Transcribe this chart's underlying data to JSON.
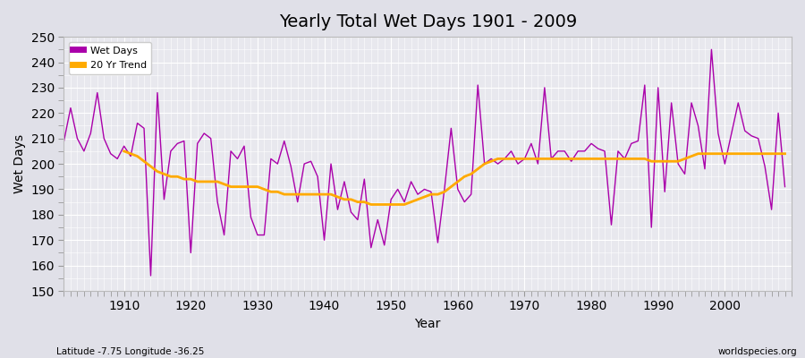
{
  "title": "Yearly Total Wet Days 1901 - 2009",
  "xlabel": "Year",
  "ylabel": "Wet Days",
  "footnote_left": "Latitude -7.75 Longitude -36.25",
  "footnote_right": "worldspecies.org",
  "ylim": [
    150,
    250
  ],
  "yticks": [
    150,
    160,
    170,
    180,
    190,
    200,
    210,
    220,
    230,
    240,
    250
  ],
  "xticks": [
    1910,
    1920,
    1930,
    1940,
    1950,
    1960,
    1970,
    1980,
    1990,
    2000
  ],
  "line_color": "#aa00aa",
  "trend_color": "#ffaa00",
  "bg_color": "#e8e8ee",
  "fig_color": "#e0e0e8",
  "legend_labels": [
    "Wet Days",
    "20 Yr Trend"
  ],
  "years": [
    1901,
    1902,
    1903,
    1904,
    1905,
    1906,
    1907,
    1908,
    1909,
    1910,
    1911,
    1912,
    1913,
    1914,
    1915,
    1916,
    1917,
    1918,
    1919,
    1920,
    1921,
    1922,
    1923,
    1924,
    1925,
    1926,
    1927,
    1928,
    1929,
    1930,
    1931,
    1932,
    1933,
    1934,
    1935,
    1936,
    1937,
    1938,
    1939,
    1940,
    1941,
    1942,
    1943,
    1944,
    1945,
    1946,
    1947,
    1948,
    1949,
    1950,
    1951,
    1952,
    1953,
    1954,
    1955,
    1956,
    1957,
    1958,
    1959,
    1960,
    1961,
    1962,
    1963,
    1964,
    1965,
    1966,
    1967,
    1968,
    1969,
    1970,
    1971,
    1972,
    1973,
    1974,
    1975,
    1976,
    1977,
    1978,
    1979,
    1980,
    1981,
    1982,
    1983,
    1984,
    1985,
    1986,
    1987,
    1988,
    1989,
    1990,
    1991,
    1992,
    1993,
    1994,
    1995,
    1996,
    1997,
    1998,
    1999,
    2000,
    2001,
    2002,
    2003,
    2004,
    2005,
    2006,
    2007,
    2008,
    2009
  ],
  "wet_days": [
    209,
    222,
    210,
    205,
    212,
    228,
    210,
    204,
    202,
    207,
    203,
    216,
    214,
    156,
    228,
    186,
    205,
    208,
    209,
    165,
    208,
    212,
    210,
    185,
    172,
    205,
    202,
    207,
    179,
    172,
    172,
    202,
    200,
    209,
    199,
    185,
    200,
    201,
    195,
    170,
    200,
    182,
    193,
    181,
    178,
    194,
    167,
    178,
    168,
    186,
    190,
    185,
    193,
    188,
    190,
    189,
    169,
    190,
    214,
    190,
    185,
    188,
    231,
    200,
    202,
    200,
    202,
    205,
    200,
    202,
    208,
    200,
    230,
    202,
    205,
    205,
    201,
    205,
    205,
    208,
    206,
    205,
    176,
    205,
    202,
    208,
    209,
    231,
    175,
    230,
    189,
    224,
    200,
    196,
    224,
    215,
    198,
    245,
    212,
    200,
    212,
    224,
    213,
    211,
    210,
    199,
    182,
    220,
    191
  ],
  "trend_years": [
    1910,
    1911,
    1912,
    1913,
    1914,
    1915,
    1916,
    1917,
    1918,
    1919,
    1920,
    1921,
    1922,
    1923,
    1924,
    1925,
    1926,
    1927,
    1928,
    1929,
    1930,
    1931,
    1932,
    1933,
    1934,
    1935,
    1936,
    1937,
    1938,
    1939,
    1940,
    1941,
    1942,
    1943,
    1944,
    1945,
    1946,
    1947,
    1948,
    1949,
    1950,
    1951,
    1952,
    1953,
    1954,
    1955,
    1956,
    1957,
    1958,
    1959,
    1960,
    1961,
    1962,
    1963,
    1964,
    1965,
    1966,
    1967,
    1968,
    1969,
    1970,
    1971,
    1972,
    1973,
    1974,
    1975,
    1976,
    1977,
    1978,
    1979,
    1980,
    1981,
    1982,
    1983,
    1984,
    1985,
    1986,
    1987,
    1988,
    1989,
    1990,
    1991,
    1992,
    1993,
    1994,
    1995,
    1996,
    1997,
    1998,
    1999,
    2000,
    2001,
    2002,
    2003,
    2004,
    2005,
    2006,
    2007,
    2008,
    2009
  ],
  "trend": [
    205,
    204,
    203,
    201,
    199,
    197,
    196,
    195,
    195,
    194,
    194,
    193,
    193,
    193,
    193,
    192,
    191,
    191,
    191,
    191,
    191,
    190,
    189,
    189,
    188,
    188,
    188,
    188,
    188,
    188,
    188,
    188,
    187,
    186,
    186,
    185,
    185,
    184,
    184,
    184,
    184,
    184,
    184,
    185,
    186,
    187,
    188,
    188,
    189,
    191,
    193,
    195,
    196,
    198,
    200,
    201,
    202,
    202,
    202,
    202,
    202,
    202,
    202,
    202,
    202,
    202,
    202,
    202,
    202,
    202,
    202,
    202,
    202,
    202,
    202,
    202,
    202,
    202,
    202,
    201,
    201,
    201,
    201,
    201,
    202,
    203,
    204,
    204,
    204,
    204,
    204,
    204,
    204,
    204,
    204,
    204,
    204,
    204,
    204,
    204
  ]
}
